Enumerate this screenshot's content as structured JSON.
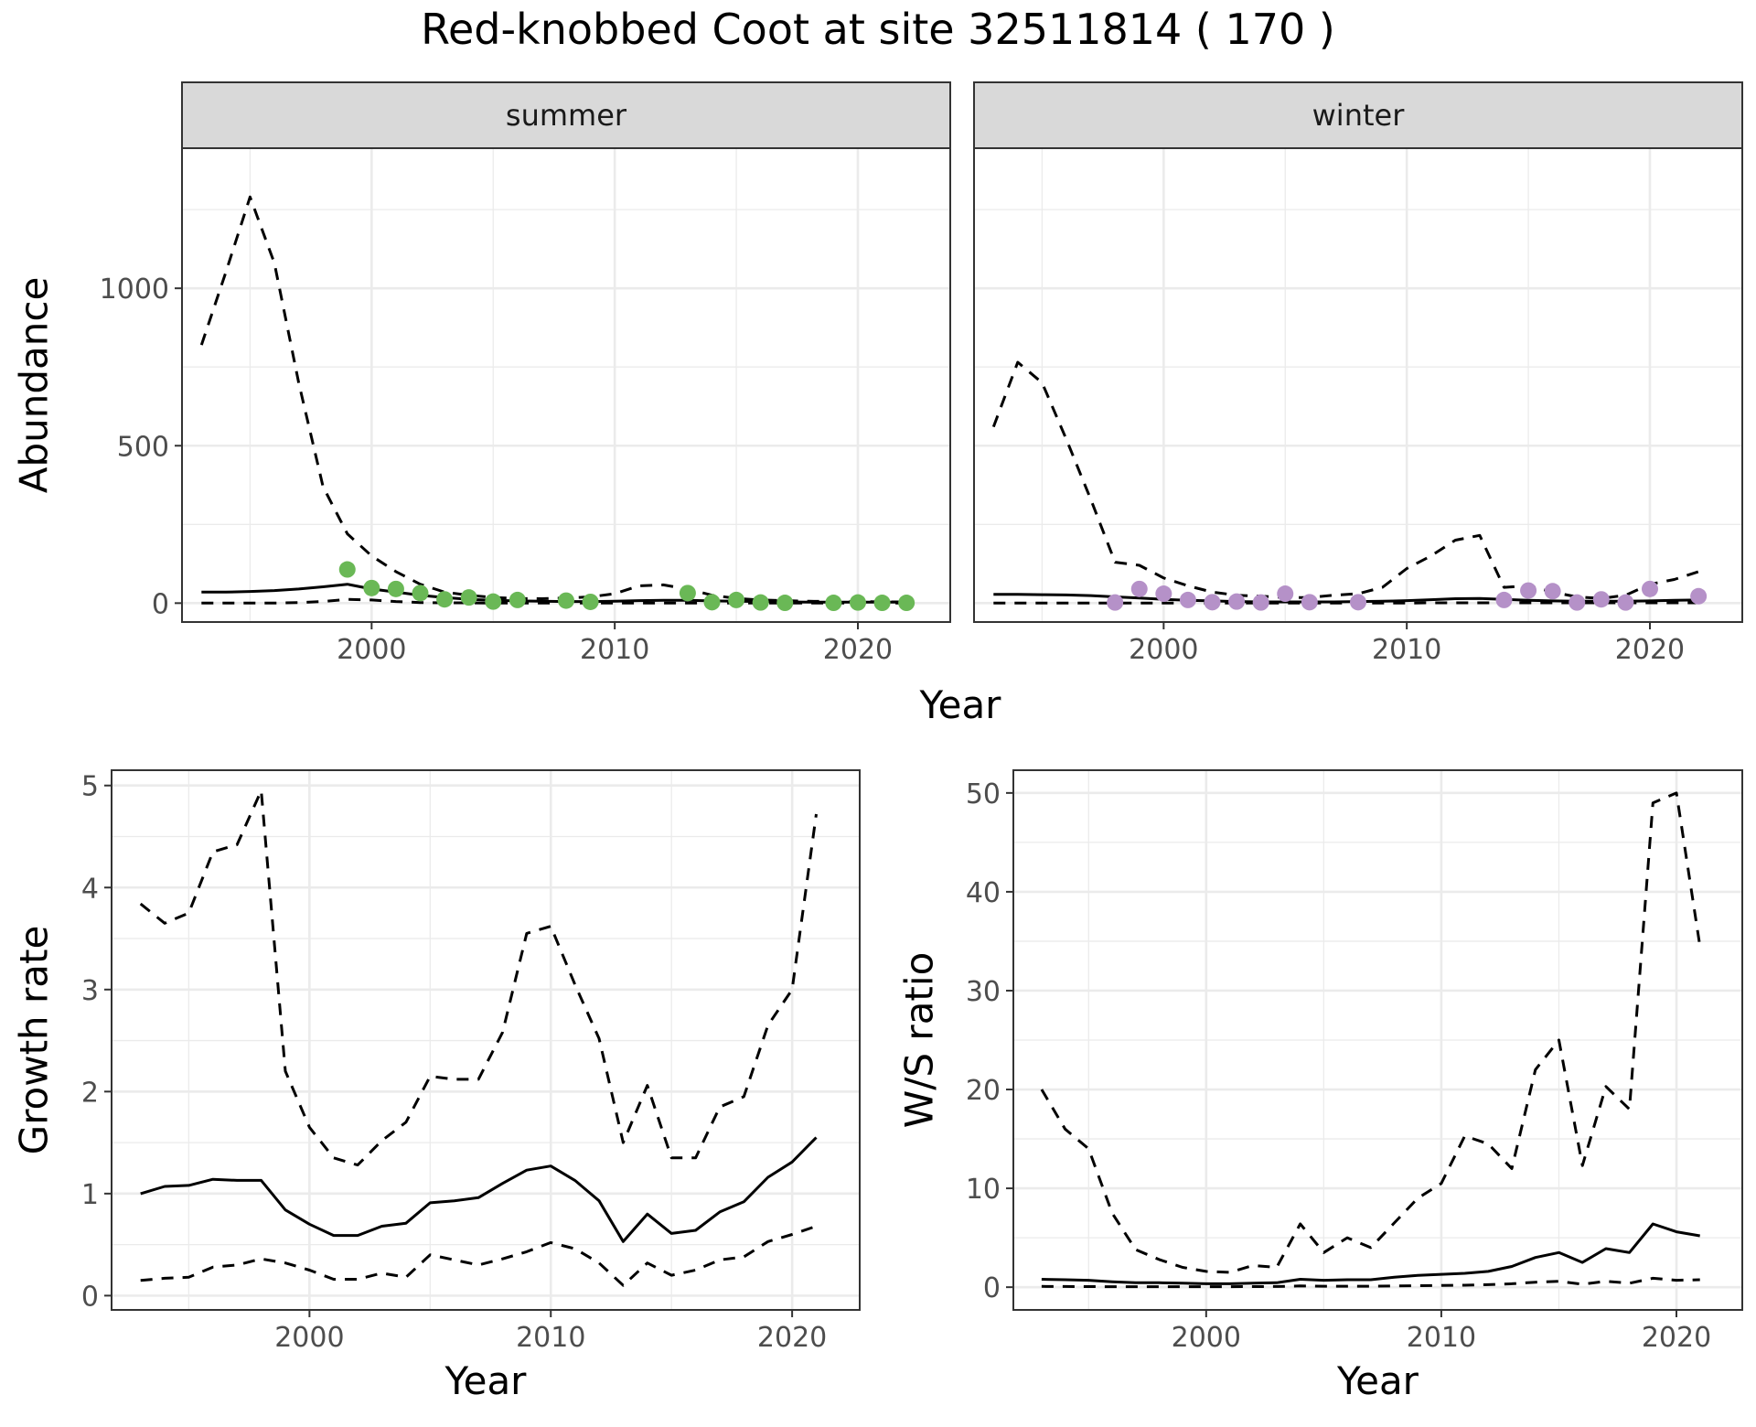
{
  "title": "Red-knobbed Coot at site 32511814 ( 170 )",
  "colors": {
    "summer_points": "#6ab856",
    "winter_points": "#b591c8",
    "lines": "#000000",
    "strip": "#d9d9d9"
  },
  "chart_data": [
    {
      "type": "line",
      "panel": "summer",
      "strip_label": "summer",
      "xlabel": "Year",
      "ylabel": "Abundance",
      "xlim": [
        1992.2,
        2023.8
      ],
      "ylim": [
        -60,
        1445
      ],
      "xticks": [
        2000,
        2010,
        2020
      ],
      "yticks": [
        0,
        500,
        1000
      ],
      "series": [
        {
          "style": "solid",
          "x": [
            1993,
            1994,
            1995,
            1996,
            1997,
            1998,
            1999,
            2000,
            2001,
            2002,
            2003,
            2004,
            2005,
            2006,
            2007,
            2008,
            2009,
            2010,
            2011,
            2012,
            2013,
            2014,
            2015,
            2016,
            2017,
            2018,
            2019,
            2020,
            2021,
            2022
          ],
          "y": [
            35,
            35,
            37,
            40,
            45,
            52,
            60,
            45,
            35,
            25,
            18,
            12,
            9,
            7,
            6,
            5,
            5,
            6,
            8,
            9,
            9,
            7,
            6,
            5,
            4,
            3,
            3,
            3,
            3,
            3
          ]
        },
        {
          "style": "dashed",
          "x": [
            1993,
            1994,
            1995,
            1996,
            1997,
            1998,
            1999,
            2000,
            2001,
            2002,
            2003,
            2004,
            2005,
            2006,
            2007,
            2008,
            2009,
            2010,
            2011,
            2012,
            2013,
            2014,
            2015,
            2016,
            2017,
            2018,
            2019,
            2020,
            2021,
            2022
          ],
          "y": [
            820,
            1050,
            1290,
            1080,
            700,
            370,
            220,
            150,
            100,
            60,
            35,
            25,
            18,
            15,
            14,
            16,
            20,
            30,
            55,
            58,
            45,
            25,
            15,
            10,
            8,
            6,
            5,
            5,
            4,
            4
          ]
        },
        {
          "style": "dashed",
          "x": [
            1993,
            1994,
            1995,
            1996,
            1997,
            1998,
            1999,
            2000,
            2001,
            2002,
            2003,
            2004,
            2005,
            2006,
            2007,
            2008,
            2009,
            2010,
            2011,
            2012,
            2013,
            2014,
            2015,
            2016,
            2017,
            2018,
            2019,
            2020,
            2021,
            2022
          ],
          "y": [
            0,
            0,
            0,
            0,
            2,
            5,
            12,
            10,
            5,
            2,
            1,
            1,
            0,
            0,
            0,
            0,
            0,
            0,
            0,
            0,
            0,
            0,
            0,
            0,
            0,
            0,
            0,
            0,
            0,
            0
          ]
        }
      ],
      "points": {
        "x": [
          1999,
          2000,
          2001,
          2002,
          2003,
          2004,
          2005,
          2006,
          2008,
          2009,
          2013,
          2014,
          2015,
          2016,
          2017,
          2019,
          2020,
          2021,
          2022
        ],
        "y": [
          107,
          48,
          45,
          32,
          12,
          18,
          5,
          10,
          8,
          4,
          32,
          3,
          10,
          2,
          1,
          1,
          2,
          1,
          1
        ]
      }
    },
    {
      "type": "line",
      "panel": "winter",
      "strip_label": "winter",
      "xlabel": "Year",
      "ylabel": "Abundance",
      "xlim": [
        1992.2,
        2023.8
      ],
      "ylim": [
        -60,
        1445
      ],
      "xticks": [
        2000,
        2010,
        2020
      ],
      "yticks": [
        0,
        500,
        1000
      ],
      "series": [
        {
          "style": "solid",
          "x": [
            1993,
            1994,
            1995,
            1996,
            1997,
            1998,
            1999,
            2000,
            2001,
            2002,
            2003,
            2004,
            2005,
            2006,
            2007,
            2008,
            2009,
            2010,
            2011,
            2012,
            2013,
            2014,
            2015,
            2016,
            2017,
            2018,
            2019,
            2020,
            2021,
            2022
          ],
          "y": [
            28,
            28,
            27,
            26,
            24,
            20,
            16,
            12,
            9,
            7,
            5,
            4,
            4,
            4,
            4,
            5,
            6,
            8,
            11,
            14,
            15,
            12,
            9,
            7,
            6,
            6,
            6,
            7,
            9,
            10
          ]
        },
        {
          "style": "dashed",
          "x": [
            1993,
            1994,
            1995,
            1996,
            1997,
            1998,
            1999,
            2000,
            2001,
            2002,
            2003,
            2004,
            2005,
            2006,
            2007,
            2008,
            2009,
            2010,
            2011,
            2012,
            2013,
            2014,
            2015,
            2016,
            2017,
            2018,
            2019,
            2020,
            2021,
            2022
          ],
          "y": [
            560,
            765,
            700,
            520,
            330,
            130,
            120,
            80,
            55,
            35,
            25,
            22,
            18,
            18,
            25,
            30,
            50,
            110,
            150,
            200,
            215,
            50,
            55,
            35,
            20,
            15,
            25,
            60,
            75,
            100
          ]
        },
        {
          "style": "dashed",
          "x": [
            1993,
            1994,
            1995,
            1996,
            1997,
            1998,
            1999,
            2000,
            2001,
            2002,
            2003,
            2004,
            2005,
            2006,
            2007,
            2008,
            2009,
            2010,
            2011,
            2012,
            2013,
            2014,
            2015,
            2016,
            2017,
            2018,
            2019,
            2020,
            2021,
            2022
          ],
          "y": [
            0,
            0,
            0,
            0,
            0,
            0,
            0,
            0,
            0,
            0,
            0,
            0,
            0,
            0,
            0,
            0,
            0,
            0,
            1,
            1,
            1,
            1,
            1,
            1,
            1,
            1,
            1,
            1,
            1,
            1
          ]
        }
      ],
      "points": {
        "x": [
          1998,
          1999,
          2000,
          2001,
          2002,
          2003,
          2004,
          2005,
          2006,
          2008,
          2014,
          2015,
          2016,
          2017,
          2018,
          2019,
          2020,
          2022
        ],
        "y": [
          2,
          45,
          30,
          10,
          3,
          5,
          2,
          30,
          3,
          3,
          10,
          40,
          38,
          2,
          12,
          2,
          45,
          22
        ]
      }
    },
    {
      "type": "line",
      "panel": "growth",
      "xlabel": "Year",
      "ylabel": "Growth rate",
      "xlim": [
        1991.8,
        2022.8
      ],
      "ylim": [
        -0.14,
        5.15
      ],
      "xticks": [
        2000,
        2010,
        2020
      ],
      "yticks": [
        0,
        1,
        2,
        3,
        4,
        5
      ],
      "series": [
        {
          "style": "solid",
          "x": [
            1993,
            1994,
            1995,
            1996,
            1997,
            1998,
            1999,
            2000,
            2001,
            2002,
            2003,
            2004,
            2005,
            2006,
            2007,
            2008,
            2009,
            2010,
            2011,
            2012,
            2013,
            2014,
            2015,
            2016,
            2017,
            2018,
            2019,
            2020,
            2021
          ],
          "y": [
            1.0,
            1.07,
            1.08,
            1.14,
            1.13,
            1.13,
            0.84,
            0.7,
            0.59,
            0.59,
            0.68,
            0.71,
            0.91,
            0.93,
            0.96,
            1.1,
            1.23,
            1.27,
            1.13,
            0.93,
            0.53,
            0.8,
            0.61,
            0.64,
            0.82,
            0.92,
            1.16,
            1.31,
            1.55
          ]
        },
        {
          "style": "dashed",
          "x": [
            1993,
            1994,
            1995,
            1996,
            1997,
            1998,
            1999,
            2000,
            2001,
            2002,
            2003,
            2004,
            2005,
            2006,
            2007,
            2008,
            2009,
            2010,
            2011,
            2012,
            2013,
            2014,
            2015,
            2016,
            2017,
            2018,
            2019,
            2020,
            2021
          ],
          "y": [
            3.84,
            3.65,
            3.75,
            4.35,
            4.42,
            4.95,
            2.2,
            1.65,
            1.35,
            1.28,
            1.52,
            1.7,
            2.15,
            2.12,
            2.12,
            2.58,
            3.55,
            3.62,
            3.05,
            2.52,
            1.5,
            2.06,
            1.35,
            1.35,
            1.85,
            1.95,
            2.65,
            3.0,
            4.72
          ]
        },
        {
          "style": "dashed",
          "x": [
            1993,
            1994,
            1995,
            1996,
            1997,
            1998,
            1999,
            2000,
            2001,
            2002,
            2003,
            2004,
            2005,
            2006,
            2007,
            2008,
            2009,
            2010,
            2011,
            2012,
            2013,
            2014,
            2015,
            2016,
            2017,
            2018,
            2019,
            2020,
            2021
          ],
          "y": [
            0.15,
            0.17,
            0.18,
            0.28,
            0.3,
            0.36,
            0.32,
            0.25,
            0.16,
            0.16,
            0.22,
            0.18,
            0.4,
            0.35,
            0.3,
            0.36,
            0.43,
            0.52,
            0.46,
            0.32,
            0.1,
            0.32,
            0.2,
            0.25,
            0.35,
            0.38,
            0.53,
            0.6,
            0.68
          ]
        }
      ]
    },
    {
      "type": "line",
      "panel": "ratio",
      "xlabel": "Year",
      "ylabel": "W/S ratio",
      "xlim": [
        1991.8,
        2022.8
      ],
      "ylim": [
        -2.3,
        52.3
      ],
      "xticks": [
        2000,
        2010,
        2020
      ],
      "yticks": [
        0,
        10,
        20,
        30,
        40,
        50
      ],
      "series": [
        {
          "style": "solid",
          "x": [
            1993,
            1994,
            1995,
            1996,
            1997,
            1998,
            1999,
            2000,
            2001,
            2002,
            2003,
            2004,
            2005,
            2006,
            2007,
            2008,
            2009,
            2010,
            2011,
            2012,
            2013,
            2014,
            2015,
            2016,
            2017,
            2018,
            2019,
            2020,
            2021
          ],
          "y": [
            0.8,
            0.75,
            0.7,
            0.55,
            0.45,
            0.45,
            0.4,
            0.35,
            0.35,
            0.4,
            0.45,
            0.8,
            0.7,
            0.75,
            0.75,
            1.0,
            1.2,
            1.3,
            1.4,
            1.6,
            2.1,
            3.0,
            3.5,
            2.5,
            3.9,
            3.5,
            6.4,
            5.6,
            5.2
          ]
        },
        {
          "style": "dashed",
          "x": [
            1993,
            1994,
            1995,
            1996,
            1997,
            1998,
            1999,
            2000,
            2001,
            2002,
            2003,
            2004,
            2005,
            2006,
            2007,
            2008,
            2009,
            2010,
            2011,
            2012,
            2013,
            2014,
            2015,
            2016,
            2017,
            2018,
            2019,
            2020,
            2021
          ],
          "y": [
            20,
            16,
            14,
            7.5,
            3.8,
            2.8,
            2.0,
            1.6,
            1.5,
            2.2,
            2.0,
            6.4,
            3.5,
            5.0,
            4.0,
            6.5,
            9.0,
            10.5,
            15.3,
            14.5,
            12.0,
            22.0,
            25.0,
            12.3,
            20.3,
            18.0,
            49.0,
            50.0,
            34.5
          ]
        },
        {
          "style": "dashed",
          "x": [
            1993,
            1994,
            1995,
            1996,
            1997,
            1998,
            1999,
            2000,
            2001,
            2002,
            2003,
            2004,
            2005,
            2006,
            2007,
            2008,
            2009,
            2010,
            2011,
            2012,
            2013,
            2014,
            2015,
            2016,
            2017,
            2018,
            2019,
            2020,
            2021
          ],
          "y": [
            0.08,
            0.07,
            0.06,
            0.05,
            0.05,
            0.05,
            0.05,
            0.04,
            0.05,
            0.06,
            0.07,
            0.12,
            0.1,
            0.1,
            0.1,
            0.12,
            0.15,
            0.18,
            0.2,
            0.25,
            0.35,
            0.5,
            0.6,
            0.3,
            0.6,
            0.4,
            0.9,
            0.7,
            0.75
          ]
        }
      ]
    }
  ]
}
